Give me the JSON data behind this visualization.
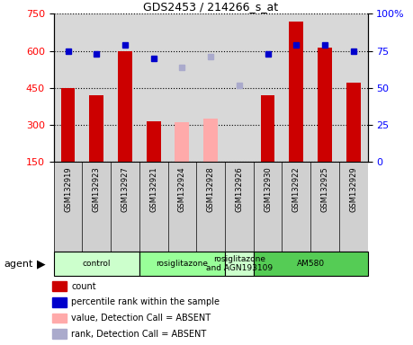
{
  "title": "GDS2453 / 214266_s_at",
  "samples": [
    "GSM132919",
    "GSM132923",
    "GSM132927",
    "GSM132921",
    "GSM132924",
    "GSM132928",
    "GSM132926",
    "GSM132930",
    "GSM132922",
    "GSM132925",
    "GSM132929"
  ],
  "bar_values": [
    450,
    420,
    600,
    315,
    null,
    null,
    null,
    420,
    720,
    615,
    470
  ],
  "bar_absent_values": [
    null,
    null,
    null,
    null,
    310,
    325,
    null,
    null,
    null,
    null,
    null
  ],
  "percentile_present": [
    75,
    73,
    79,
    70,
    null,
    null,
    null,
    73,
    79,
    79,
    75
  ],
  "percentile_absent": [
    null,
    null,
    null,
    null,
    64,
    71,
    52,
    null,
    null,
    null,
    null
  ],
  "bar_color_present": "#cc0000",
  "bar_color_absent": "#ffaaaa",
  "dot_color_present": "#0000cc",
  "dot_color_absent": "#aaaacc",
  "ylim_left": [
    150,
    750
  ],
  "ylim_right": [
    0,
    100
  ],
  "yticks_left": [
    150,
    300,
    450,
    600,
    750
  ],
  "yticks_right": [
    0,
    25,
    50,
    75,
    100
  ],
  "groups": [
    {
      "label": "control",
      "start": 0,
      "end": 3,
      "color": "#ccffcc"
    },
    {
      "label": "rosiglitazone",
      "start": 3,
      "end": 6,
      "color": "#99ff99"
    },
    {
      "label": "rosiglitazone\nand AGN193109",
      "start": 6,
      "end": 7,
      "color": "#ccffcc"
    },
    {
      "label": "AM580",
      "start": 7,
      "end": 11,
      "color": "#55cc55"
    }
  ],
  "agent_label": "agent",
  "legend_items": [
    {
      "label": "count",
      "color": "#cc0000"
    },
    {
      "label": "percentile rank within the sample",
      "color": "#0000cc"
    },
    {
      "label": "value, Detection Call = ABSENT",
      "color": "#ffaaaa"
    },
    {
      "label": "rank, Detection Call = ABSENT",
      "color": "#aaaacc"
    }
  ],
  "plot_bg_color": "#d8d8d8",
  "xtick_bg_color": "#d0d0d0",
  "bar_width": 0.5
}
